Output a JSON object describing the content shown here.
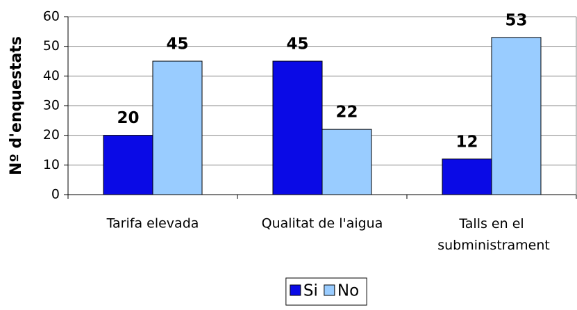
{
  "chart_data": {
    "type": "bar",
    "y_label": "Nº d'enquestats",
    "categories": [
      "Tarifa elevada",
      "Qualitat de l'aigua",
      "Talls en el subministrament"
    ],
    "series": [
      {
        "name": "Si",
        "color": "#0a0ae6",
        "values": [
          20,
          45,
          12
        ]
      },
      {
        "name": "No",
        "color": "#99ccff",
        "values": [
          45,
          22,
          53
        ]
      }
    ],
    "ylim": [
      0,
      60
    ],
    "yticks": [
      0,
      10,
      20,
      30,
      40,
      50,
      60
    ],
    "grid": true,
    "legend": "bottom"
  }
}
